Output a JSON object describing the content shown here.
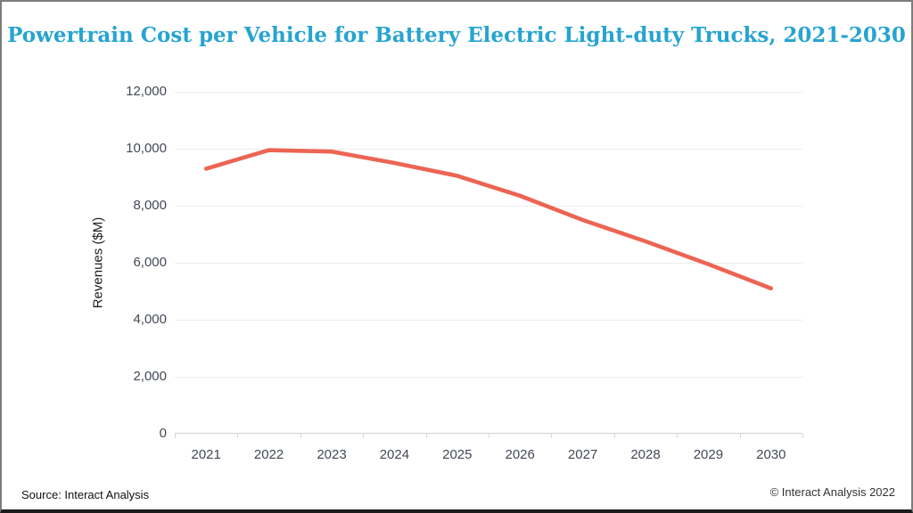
{
  "title": "Powertrain Cost per Vehicle for Battery Electric Light-duty Trucks, 2021-2030",
  "footer": {
    "source": "Source: Interact Analysis",
    "copyright": "© Interact Analysis 2022"
  },
  "colors": {
    "title": "#27a4cf",
    "line": "#ec6453",
    "grid": "#ececec",
    "axis_line": "#d2d2d2",
    "axis_text": "#424956"
  },
  "chart_data": {
    "type": "line",
    "title": "Powertrain Cost per Vehicle for Battery Electric Light-duty Trucks, 2021-2030",
    "categories": [
      "2021",
      "2022",
      "2023",
      "2024",
      "2025",
      "2026",
      "2027",
      "2028",
      "2029",
      "2030"
    ],
    "values": [
      9300,
      9950,
      9900,
      9500,
      9050,
      8350,
      7500,
      6750,
      5950,
      5100
    ],
    "xlabel": "",
    "ylabel": "Revenues ($M)",
    "ylim": [
      0,
      12000
    ],
    "ytick_step": 2000,
    "ytick_labels": [
      "0",
      "2,000",
      "4,000",
      "6,000",
      "8,000",
      "10,000",
      "12,000"
    ],
    "grid": "horizontal",
    "legend": "none",
    "line_color": "#ec6453"
  }
}
